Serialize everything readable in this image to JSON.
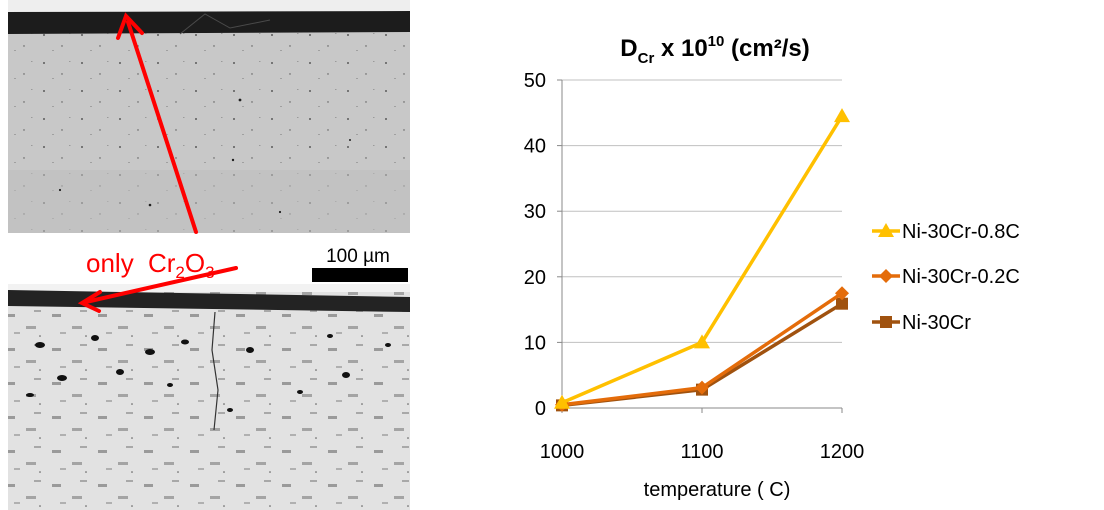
{
  "figure": {
    "annotation_label": "only",
    "annotation_formula": {
      "el1": "Cr",
      "sub1": "2",
      "el2": "O",
      "sub2": "3"
    },
    "scale_bar_label": "100 µm",
    "annotation_color": "#ff0000"
  },
  "chart_data": {
    "type": "line",
    "title": {
      "main": "D",
      "sub": "Cr",
      "mid": " x 10",
      "sup": "10",
      "end": " (cm²/s)"
    },
    "xlabel": "temperature ( C)",
    "ylabel": "",
    "x": [
      1000,
      1100,
      1200
    ],
    "xticks": [
      "1000",
      "1100",
      "1200"
    ],
    "ylim": [
      0,
      50
    ],
    "yticks": [
      0,
      10,
      20,
      30,
      40,
      50
    ],
    "grid": true,
    "legend_position": "right",
    "series": [
      {
        "name": "Ni-30Cr-0.8C",
        "values": [
          0.8,
          10,
          44.5
        ],
        "color": "#FFC000",
        "marker": "triangle"
      },
      {
        "name": "Ni-30Cr-0.2C",
        "values": [
          0.5,
          3.1,
          17.5
        ],
        "color": "#E46C0A",
        "marker": "diamond"
      },
      {
        "name": "Ni-30Cr",
        "values": [
          0.4,
          2.8,
          15.9
        ],
        "color": "#A0520F",
        "marker": "square"
      }
    ]
  }
}
